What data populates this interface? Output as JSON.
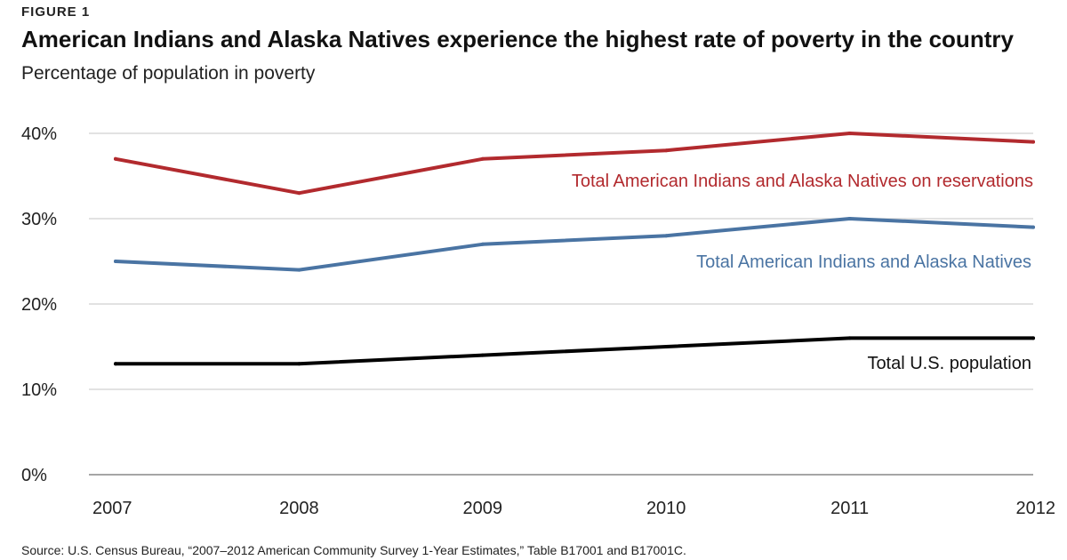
{
  "figure_label": "FIGURE 1",
  "source": "Source: U.S. Census Bureau, “2007–2012 American Community Survey 1-Year Estimates,” Table B17001 and B17001C.",
  "colors": {
    "reservations": "#b22a2e",
    "aian": "#4a74a3",
    "us_total": "#000000",
    "grid": "#d9d9d9",
    "axis": "#888888"
  },
  "chart_data": {
    "type": "line",
    "title": "American Indians and Alaska Natives experience the highest rate of poverty in the country",
    "subtitle": "Percentage of population in poverty",
    "xlabel": "",
    "ylabel": "",
    "x": [
      "2007",
      "2008",
      "2009",
      "2010",
      "2011",
      "2012"
    ],
    "ylim": [
      0,
      40
    ],
    "yticks": [
      0,
      10,
      20,
      30,
      40
    ],
    "ytick_labels": [
      "0%",
      "10%",
      "20%",
      "30%",
      "40%"
    ],
    "grid": true,
    "legend": "inline labels",
    "series": [
      {
        "name": "Total American Indians and Alaska Natives on reservations",
        "key": "reservations",
        "values": [
          37,
          33,
          37,
          38,
          40,
          39
        ]
      },
      {
        "name": "Total American Indians and Alaska Natives",
        "key": "aian",
        "values": [
          25,
          24,
          27,
          28,
          30,
          29
        ]
      },
      {
        "name": "Total U.S. population",
        "key": "us_total",
        "values": [
          13,
          13,
          14,
          15,
          16,
          16
        ]
      }
    ]
  }
}
